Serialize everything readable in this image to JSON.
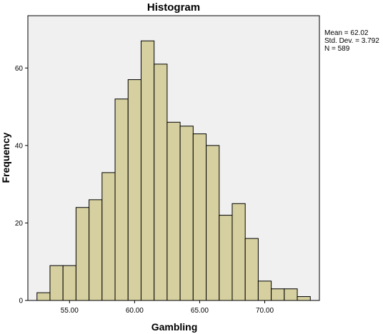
{
  "chart_data": {
    "type": "bar",
    "title": "Histogram",
    "xlabel": "Gambling",
    "ylabel": "Frequency",
    "bin_width": 1.0,
    "bin_starts": [
      52.5,
      53.5,
      54.5,
      55.5,
      56.5,
      57.5,
      58.5,
      59.5,
      60.5,
      61.5,
      62.5,
      63.5,
      64.5,
      65.5,
      66.5,
      67.5,
      68.5,
      69.5,
      70.5,
      71.5,
      72.5
    ],
    "values": [
      2,
      9,
      9,
      24,
      26,
      33,
      52,
      57,
      67,
      61,
      46,
      45,
      43,
      40,
      22,
      25,
      16,
      5,
      3,
      3,
      1
    ],
    "x_ticks": [
      55.0,
      60.0,
      65.0,
      70.0
    ],
    "x_tick_labels": [
      "55.00",
      "60.00",
      "65.00",
      "70.00"
    ],
    "y_ticks": [
      0,
      20,
      40,
      60
    ],
    "y_tick_labels": [
      "0",
      "20",
      "40",
      "60"
    ],
    "xlim": [
      51.8,
      74.2
    ],
    "ylim": [
      0,
      73.5
    ],
    "grid": false,
    "legend": "none",
    "stats": {
      "mean": "Mean = 62.02",
      "std": "Std. Dev. = 3.792",
      "n": "N = 589"
    },
    "colors": {
      "bar_fill": "#d6d0a0",
      "bar_stroke": "#000000",
      "plot_background": "#f0f0f0"
    }
  }
}
